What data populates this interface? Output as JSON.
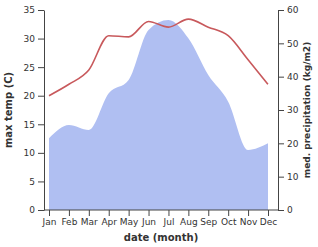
{
  "chart_data": {
    "type": "line",
    "x_label": "date (month)",
    "y_label": "max temp (C)",
    "y2_label": "med. precipitation (kg/m2)",
    "categories": [
      "Jan",
      "Feb",
      "Mar",
      "Apr",
      "May",
      "Jun",
      "Jul",
      "Aug",
      "Sep",
      "Oct",
      "Nov",
      "Dec"
    ],
    "series": [
      {
        "name": "max temp",
        "type": "line",
        "color": "#c8595c",
        "values": [
          20,
          22,
          24.5,
          30.5,
          30.3,
          33,
          32,
          33.4,
          32,
          30.5,
          26.3,
          22
        ]
      },
      {
        "name": "med. precipitation",
        "type": "area",
        "color": "#b0bff2",
        "axis": "y2",
        "values": [
          21.5,
          25.5,
          24,
          35,
          39,
          54,
          57,
          51.5,
          40.5,
          32.5,
          18,
          20
        ]
      }
    ],
    "ylim": [
      0,
      35
    ],
    "yticks": [
      0,
      5,
      10,
      15,
      20,
      25,
      30,
      35
    ],
    "y2lim": [
      0,
      60
    ],
    "y2ticks": [
      0,
      10,
      20,
      30,
      40,
      50,
      60
    ],
    "grid": false
  }
}
